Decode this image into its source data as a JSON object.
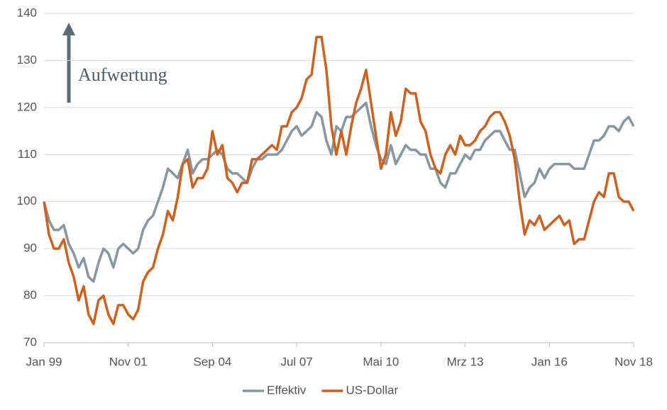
{
  "chart_data": {
    "type": "line",
    "annotation": "Aufwertung",
    "categories": [
      "Jan 99",
      null,
      null,
      null,
      null,
      null,
      null,
      null,
      null,
      null,
      null,
      null,
      null,
      null,
      null,
      null,
      null,
      "Nov 01",
      null,
      null,
      null,
      null,
      null,
      null,
      null,
      null,
      null,
      null,
      null,
      null,
      null,
      null,
      null,
      null,
      "Sep 04",
      null,
      null,
      null,
      null,
      null,
      null,
      null,
      null,
      null,
      null,
      null,
      null,
      null,
      null,
      null,
      null,
      "Jul 07",
      null,
      null,
      null,
      null,
      null,
      null,
      null,
      null,
      null,
      null,
      null,
      null,
      null,
      null,
      null,
      null,
      "Mai 10",
      null,
      null,
      null,
      null,
      null,
      null,
      null,
      null,
      null,
      null,
      null,
      null,
      null,
      null,
      null,
      null,
      "Mrz 13",
      null,
      null,
      null,
      null,
      null,
      null,
      null,
      null,
      null,
      null,
      null,
      null,
      null,
      null,
      null,
      null,
      "Jan 16",
      null,
      null,
      null,
      null,
      null,
      null,
      null,
      null,
      null,
      null,
      null,
      null,
      null,
      null,
      null,
      null,
      "Nov 18"
    ],
    "series": [
      {
        "name": "Effektiv",
        "color": "#8497a3",
        "values": [
          100,
          96,
          94,
          94,
          95,
          91,
          89,
          86,
          88,
          84,
          83,
          87,
          90,
          89,
          86,
          90,
          91,
          90,
          89,
          90,
          94,
          96,
          97,
          100,
          103,
          107,
          106,
          105,
          108,
          111,
          106,
          108,
          109,
          109,
          110,
          111,
          110,
          107,
          106,
          106,
          105,
          104,
          107,
          109,
          109,
          110,
          110,
          110,
          111,
          113,
          115,
          116,
          114,
          115,
          116,
          119,
          118,
          113,
          110,
          116,
          115,
          118,
          118,
          119,
          120,
          121,
          116,
          112,
          109,
          108,
          112,
          108,
          110,
          112,
          111,
          111,
          110,
          110,
          107,
          107,
          104,
          103,
          106,
          106,
          108,
          110,
          109,
          111,
          111,
          113,
          114,
          115,
          115,
          113,
          111,
          111,
          106,
          101,
          103,
          104,
          107,
          105,
          107,
          108,
          108,
          108,
          108,
          107,
          107,
          107,
          110,
          113,
          113,
          114,
          116,
          116,
          115,
          117,
          118,
          116
        ]
      },
      {
        "name": "US-Dollar",
        "color": "#d0601b",
        "values": [
          100,
          93,
          90,
          90,
          92,
          87,
          84,
          79,
          82,
          76,
          74,
          79,
          80,
          76,
          74,
          78,
          78,
          76,
          75,
          77,
          83,
          85,
          86,
          90,
          93,
          98,
          96,
          101,
          108,
          109,
          103,
          105,
          105,
          107,
          115,
          110,
          112,
          105,
          104,
          102,
          104,
          104,
          109,
          109,
          110,
          111,
          112,
          111,
          116,
          116,
          119,
          120,
          122,
          126,
          127,
          135,
          135,
          128,
          116,
          110,
          115,
          110,
          116,
          121,
          124,
          128,
          121,
          114,
          107,
          110,
          119,
          114,
          117,
          124,
          123,
          123,
          117,
          115,
          110,
          107,
          106,
          110,
          112,
          110,
          114,
          112,
          112,
          113,
          115,
          116,
          118,
          119,
          119,
          117,
          114,
          109,
          100,
          93,
          96,
          95,
          97,
          94,
          95,
          96,
          97,
          95,
          96,
          91,
          92,
          92,
          96,
          100,
          102,
          101,
          106,
          106,
          101,
          100,
          100,
          98
        ]
      }
    ],
    "ylim": [
      70,
      140
    ],
    "yticks": [
      70,
      80,
      90,
      100,
      110,
      120,
      130,
      140
    ],
    "grid": true,
    "legend": "bottom"
  }
}
